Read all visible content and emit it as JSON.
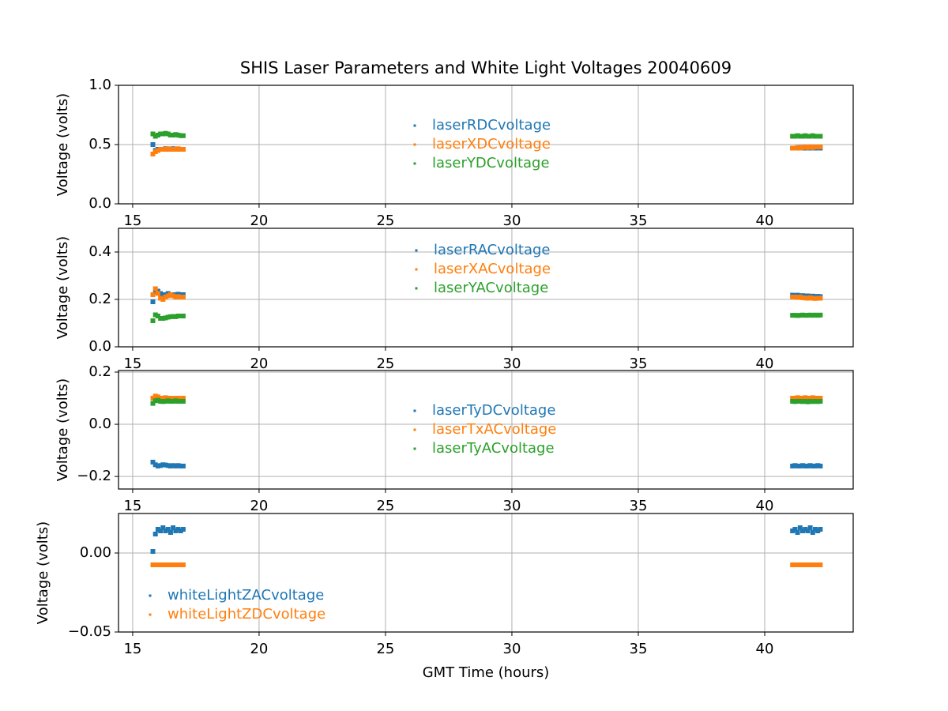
{
  "chart_data": [
    {
      "type": "scatter",
      "title": "SHIS Laser Parameters and White Light Voltages 20040609",
      "ylabel": "Voltage (volts)",
      "x": [
        15.8,
        15.9,
        16.0,
        16.1,
        16.2,
        16.3,
        16.4,
        16.5,
        16.6,
        16.7,
        16.8,
        16.9,
        17.0,
        41.1,
        41.2,
        41.3,
        41.4,
        41.5,
        41.6,
        41.7,
        41.8,
        41.9,
        42.0,
        42.1,
        42.2
      ],
      "xlim": [
        14.44,
        43.5
      ],
      "xticks": [
        15,
        20,
        25,
        30,
        35,
        40
      ],
      "ylim": [
        0,
        1
      ],
      "yticks": [
        {
          "value": 0,
          "label": "0.0"
        },
        0.5,
        {
          "value": 1,
          "label": "1.0"
        }
      ],
      "grid": true,
      "legend": "center",
      "series": [
        {
          "name": "laserRDCvoltage",
          "color": "#1f77b4",
          "values": [
            0.5,
            0.45,
            0.46,
            0.46,
            0.46,
            0.465,
            0.46,
            0.46,
            0.465,
            0.46,
            0.46,
            0.46,
            0.46,
            0.47,
            0.47,
            0.47,
            0.475,
            0.47,
            0.47,
            0.475,
            0.47,
            0.475,
            0.47,
            0.475,
            0.47
          ]
        },
        {
          "name": "laserXDCvoltage",
          "color": "#ff7f0e",
          "values": [
            0.42,
            0.44,
            0.45,
            0.46,
            0.46,
            0.46,
            0.465,
            0.46,
            0.46,
            0.46,
            0.465,
            0.46,
            0.46,
            0.47,
            0.47,
            0.475,
            0.47,
            0.475,
            0.48,
            0.475,
            0.48,
            0.475,
            0.48,
            0.48,
            0.48
          ]
        },
        {
          "name": "laserYDCvoltage",
          "color": "#2ca02c",
          "values": [
            0.59,
            0.57,
            0.58,
            0.59,
            0.59,
            0.595,
            0.59,
            0.58,
            0.58,
            0.585,
            0.58,
            0.575,
            0.575,
            0.57,
            0.57,
            0.575,
            0.57,
            0.57,
            0.575,
            0.57,
            0.57,
            0.575,
            0.57,
            0.57,
            0.57
          ]
        }
      ]
    },
    {
      "type": "scatter",
      "ylabel": "Voltage (volts)",
      "x": [
        15.8,
        15.9,
        16.0,
        16.1,
        16.2,
        16.3,
        16.4,
        16.5,
        16.6,
        16.7,
        16.8,
        16.9,
        17.0,
        41.1,
        41.2,
        41.3,
        41.4,
        41.5,
        41.6,
        41.7,
        41.8,
        41.9,
        42.0,
        42.1,
        42.2
      ],
      "xlim": [
        14.44,
        43.5
      ],
      "xticks": [
        15,
        20,
        25,
        30,
        35,
        40
      ],
      "ylim": [
        0,
        0.5
      ],
      "yticks": [
        {
          "value": 0,
          "label": "0.0"
        },
        0.2,
        0.4
      ],
      "grid": true,
      "legend": "upper center",
      "series": [
        {
          "name": "laserRACvoltage",
          "color": "#1f77b4",
          "values": [
            0.19,
            0.23,
            0.235,
            0.225,
            0.22,
            0.22,
            0.225,
            0.22,
            0.22,
            0.22,
            0.222,
            0.22,
            0.22,
            0.218,
            0.216,
            0.218,
            0.215,
            0.216,
            0.214,
            0.215,
            0.213,
            0.214,
            0.212,
            0.213,
            0.212
          ]
        },
        {
          "name": "laserXACvoltage",
          "color": "#ff7f0e",
          "values": [
            0.22,
            0.245,
            0.225,
            0.205,
            0.2,
            0.21,
            0.215,
            0.22,
            0.215,
            0.21,
            0.212,
            0.21,
            0.21,
            0.21,
            0.21,
            0.208,
            0.21,
            0.207,
            0.206,
            0.205,
            0.207,
            0.205,
            0.204,
            0.205,
            0.205
          ]
        },
        {
          "name": "laserYACvoltage",
          "color": "#2ca02c",
          "values": [
            0.11,
            0.135,
            0.13,
            0.12,
            0.12,
            0.122,
            0.125,
            0.127,
            0.128,
            0.127,
            0.13,
            0.13,
            0.13,
            0.133,
            0.133,
            0.132,
            0.133,
            0.134,
            0.133,
            0.133,
            0.134,
            0.133,
            0.134,
            0.133,
            0.134
          ]
        }
      ]
    },
    {
      "type": "scatter",
      "ylabel": "Voltage (volts)",
      "x": [
        15.8,
        15.9,
        16.0,
        16.1,
        16.2,
        16.3,
        16.4,
        16.5,
        16.6,
        16.7,
        16.8,
        16.9,
        17.0,
        41.1,
        41.2,
        41.3,
        41.4,
        41.5,
        41.6,
        41.7,
        41.8,
        41.9,
        42.0,
        42.1,
        42.2
      ],
      "xlim": [
        14.44,
        43.5
      ],
      "xticks": [
        15,
        20,
        25,
        30,
        35,
        40
      ],
      "ylim": [
        -0.248,
        0.206
      ],
      "yticks": [
        {
          "value": -0.2,
          "label": "−0.2"
        },
        {
          "value": 0,
          "label": "0.0"
        },
        0.2
      ],
      "grid": true,
      "legend": "center",
      "series": [
        {
          "name": "laserTyDCvoltage",
          "color": "#1f77b4",
          "values": [
            -0.145,
            -0.155,
            -0.16,
            -0.158,
            -0.155,
            -0.156,
            -0.158,
            -0.16,
            -0.158,
            -0.16,
            -0.158,
            -0.16,
            -0.16,
            -0.16,
            -0.158,
            -0.16,
            -0.16,
            -0.158,
            -0.16,
            -0.16,
            -0.158,
            -0.16,
            -0.16,
            -0.158,
            -0.16
          ]
        },
        {
          "name": "laserTxACvoltage",
          "color": "#ff7f0e",
          "values": [
            0.1,
            0.108,
            0.105,
            0.1,
            0.1,
            0.102,
            0.1,
            0.1,
            0.098,
            0.1,
            0.1,
            0.098,
            0.1,
            0.1,
            0.1,
            0.102,
            0.1,
            0.1,
            0.102,
            0.1,
            0.1,
            0.102,
            0.1,
            0.1,
            0.1
          ]
        },
        {
          "name": "laserTyACvoltage",
          "color": "#2ca02c",
          "values": [
            0.08,
            0.09,
            0.092,
            0.088,
            0.087,
            0.088,
            0.09,
            0.088,
            0.088,
            0.09,
            0.088,
            0.088,
            0.088,
            0.088,
            0.087,
            0.088,
            0.088,
            0.087,
            0.088,
            0.086,
            0.088,
            0.087,
            0.088,
            0.087,
            0.088
          ]
        }
      ]
    },
    {
      "type": "scatter",
      "ylabel": "Voltage (volts)",
      "xlabel": "GMT Time (hours)",
      "x": [
        15.8,
        15.9,
        16.0,
        16.1,
        16.2,
        16.3,
        16.4,
        16.5,
        16.6,
        16.7,
        16.8,
        16.9,
        17.0,
        41.1,
        41.2,
        41.3,
        41.4,
        41.5,
        41.6,
        41.7,
        41.8,
        41.9,
        42.0,
        42.1,
        42.2
      ],
      "xlim": [
        14.44,
        43.5
      ],
      "xticks": [
        15,
        20,
        25,
        30,
        35,
        40
      ],
      "ylim": [
        -0.05,
        0.025
      ],
      "yticks": [
        {
          "value": -0.05,
          "label": "−0.05"
        },
        {
          "value": 0,
          "label": "0.00"
        }
      ],
      "grid": true,
      "legend": "lower left",
      "series": [
        {
          "name": "whiteLightZACvoltage",
          "color": "#1f77b4",
          "values": [
            0.001,
            0.012,
            0.015,
            0.014,
            0.016,
            0.014,
            0.015,
            0.013,
            0.016,
            0.014,
            0.015,
            0.014,
            0.015,
            0.014,
            0.015,
            0.013,
            0.016,
            0.014,
            0.015,
            0.014,
            0.016,
            0.013,
            0.015,
            0.014,
            0.015
          ]
        },
        {
          "name": "whiteLightZDCvoltage",
          "color": "#ff7f0e",
          "values": [
            -0.0075,
            -0.0075,
            -0.0075,
            -0.0075,
            -0.0075,
            -0.0075,
            -0.0075,
            -0.0075,
            -0.0075,
            -0.0075,
            -0.0075,
            -0.0075,
            -0.0075,
            -0.0075,
            -0.0075,
            -0.0075,
            -0.0075,
            -0.0075,
            -0.0075,
            -0.0075,
            -0.0075,
            -0.0075,
            -0.0075,
            -0.0075,
            -0.0075
          ]
        }
      ]
    }
  ]
}
